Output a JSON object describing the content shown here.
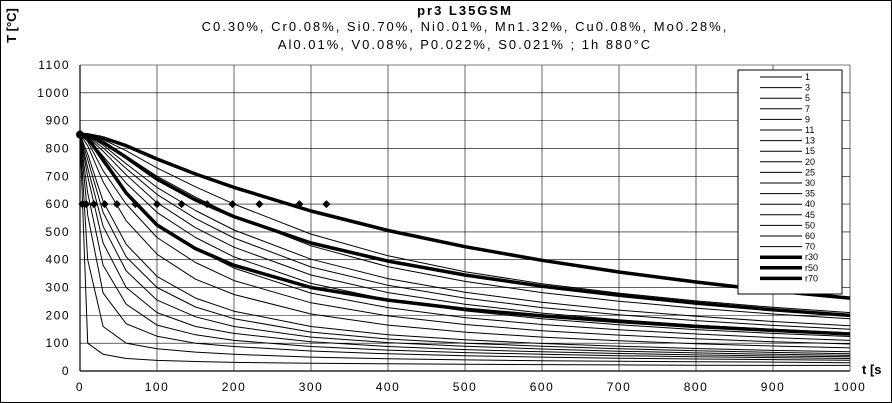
{
  "chart_data": {
    "type": "line",
    "title": "pr3 L35GSM",
    "subtitle_line1": "C0.30%, Cr0.08%, Si0.70%, Ni0.01%, Mn1.32%, Cu0.08%, Mo0.28%,",
    "subtitle_line2": "Al0.01%, V0.08%, P0.022%, S0.021%  ; 1h 880°C",
    "ylabel": "T [°C]",
    "xlabel": "t [s",
    "xlim": [
      0,
      1000
    ],
    "ylim": [
      0,
      1100
    ],
    "x_ticks": [
      0,
      100,
      200,
      300,
      400,
      500,
      600,
      700,
      800,
      900,
      1000
    ],
    "y_ticks": [
      0,
      100,
      200,
      300,
      400,
      500,
      600,
      700,
      800,
      900,
      1000,
      1100
    ],
    "grid": true,
    "legend_position": "top-right",
    "start_temperature": 850,
    "x_sampled": [
      0,
      10,
      30,
      60,
      100,
      150,
      200,
      300,
      400,
      500,
      600,
      700,
      800,
      900,
      1000
    ],
    "series": [
      {
        "name": "1",
        "width": 1,
        "values": [
          850,
          100,
          60,
          45,
          38,
          34,
          31,
          28,
          26,
          24,
          23,
          22,
          21,
          20,
          20
        ]
      },
      {
        "name": "3",
        "width": 1,
        "values": [
          850,
          400,
          160,
          100,
          80,
          68,
          60,
          50,
          44,
          40,
          37,
          35,
          33,
          32,
          30
        ]
      },
      {
        "name": "5",
        "width": 1,
        "values": [
          850,
          560,
          280,
          170,
          125,
          100,
          88,
          72,
          62,
          55,
          50,
          46,
          43,
          41,
          39
        ]
      },
      {
        "name": "7",
        "width": 1,
        "values": [
          850,
          640,
          380,
          240,
          165,
          130,
          110,
          88,
          75,
          66,
          60,
          55,
          51,
          48,
          45
        ]
      },
      {
        "name": "9",
        "width": 1,
        "values": [
          850,
          700,
          460,
          300,
          210,
          160,
          135,
          105,
          88,
          77,
          69,
          63,
          58,
          54,
          51
        ]
      },
      {
        "name": "11",
        "width": 1,
        "values": [
          850,
          730,
          520,
          360,
          255,
          195,
          160,
          122,
          102,
          89,
          79,
          71,
          65,
          60,
          56
        ]
      },
      {
        "name": "13",
        "width": 1,
        "values": [
          850,
          760,
          570,
          410,
          300,
          230,
          188,
          140,
          115,
          100,
          89,
          80,
          73,
          67,
          62
        ]
      },
      {
        "name": "15",
        "width": 1,
        "values": [
          850,
          780,
          610,
          455,
          340,
          262,
          215,
          160,
          130,
          112,
          99,
          89,
          81,
          74,
          69
        ]
      },
      {
        "name": "20",
        "width": 1,
        "values": [
          850,
          810,
          680,
          540,
          420,
          330,
          275,
          205,
          165,
          140,
          122,
          109,
          98,
          90,
          83
        ]
      },
      {
        "name": "25",
        "width": 1,
        "values": [
          850,
          825,
          720,
          600,
          480,
          390,
          325,
          245,
          198,
          167,
          145,
          129,
          116,
          105,
          97
        ]
      },
      {
        "name": "30",
        "width": 1,
        "values": [
          850,
          832,
          750,
          640,
          530,
          440,
          370,
          280,
          228,
          192,
          167,
          148,
          133,
          120,
          110
        ]
      },
      {
        "name": "35",
        "width": 1,
        "values": [
          850,
          838,
          772,
          675,
          570,
          480,
          410,
          315,
          256,
          216,
          188,
          166,
          149,
          135,
          124
        ]
      },
      {
        "name": "40",
        "width": 1,
        "values": [
          850,
          842,
          790,
          705,
          605,
          515,
          445,
          345,
          282,
          240,
          208,
          184,
          165,
          150,
          137
        ]
      },
      {
        "name": "45",
        "width": 1,
        "values": [
          850,
          845,
          802,
          728,
          635,
          548,
          478,
          374,
          308,
          262,
          228,
          202,
          181,
          164,
          150
        ]
      },
      {
        "name": "50",
        "width": 1,
        "values": [
          850,
          847,
          812,
          745,
          660,
          577,
          507,
          402,
          332,
          283,
          247,
          219,
          197,
          178,
          163
        ]
      },
      {
        "name": "60",
        "width": 1,
        "values": [
          850,
          848,
          825,
          773,
          700,
          625,
          558,
          450,
          375,
          322,
          282,
          251,
          226,
          205,
          188
        ]
      },
      {
        "name": "70",
        "width": 1,
        "values": [
          850,
          849,
          832,
          792,
          730,
          662,
          600,
          492,
          414,
          357,
          314,
          280,
          252,
          229,
          210
        ]
      },
      {
        "name": "r30",
        "width": 3.5,
        "values": [
          850,
          838,
          760,
          640,
          525,
          440,
          380,
          300,
          255,
          222,
          198,
          178,
          160,
          146,
          133
        ]
      },
      {
        "name": "r50",
        "width": 3.5,
        "values": [
          850,
          848,
          822,
          768,
          690,
          615,
          555,
          460,
          395,
          345,
          305,
          272,
          244,
          220,
          200
        ]
      },
      {
        "name": "r70",
        "width": 3.5,
        "values": [
          850,
          849,
          838,
          810,
          762,
          708,
          660,
          575,
          505,
          447,
          398,
          356,
          320,
          288,
          262
        ]
      }
    ],
    "markers": {
      "shape": "diamond",
      "y": 600,
      "x": [
        3,
        8,
        18,
        32,
        48,
        72,
        100,
        132,
        165,
        198,
        233,
        285,
        320
      ]
    }
  }
}
